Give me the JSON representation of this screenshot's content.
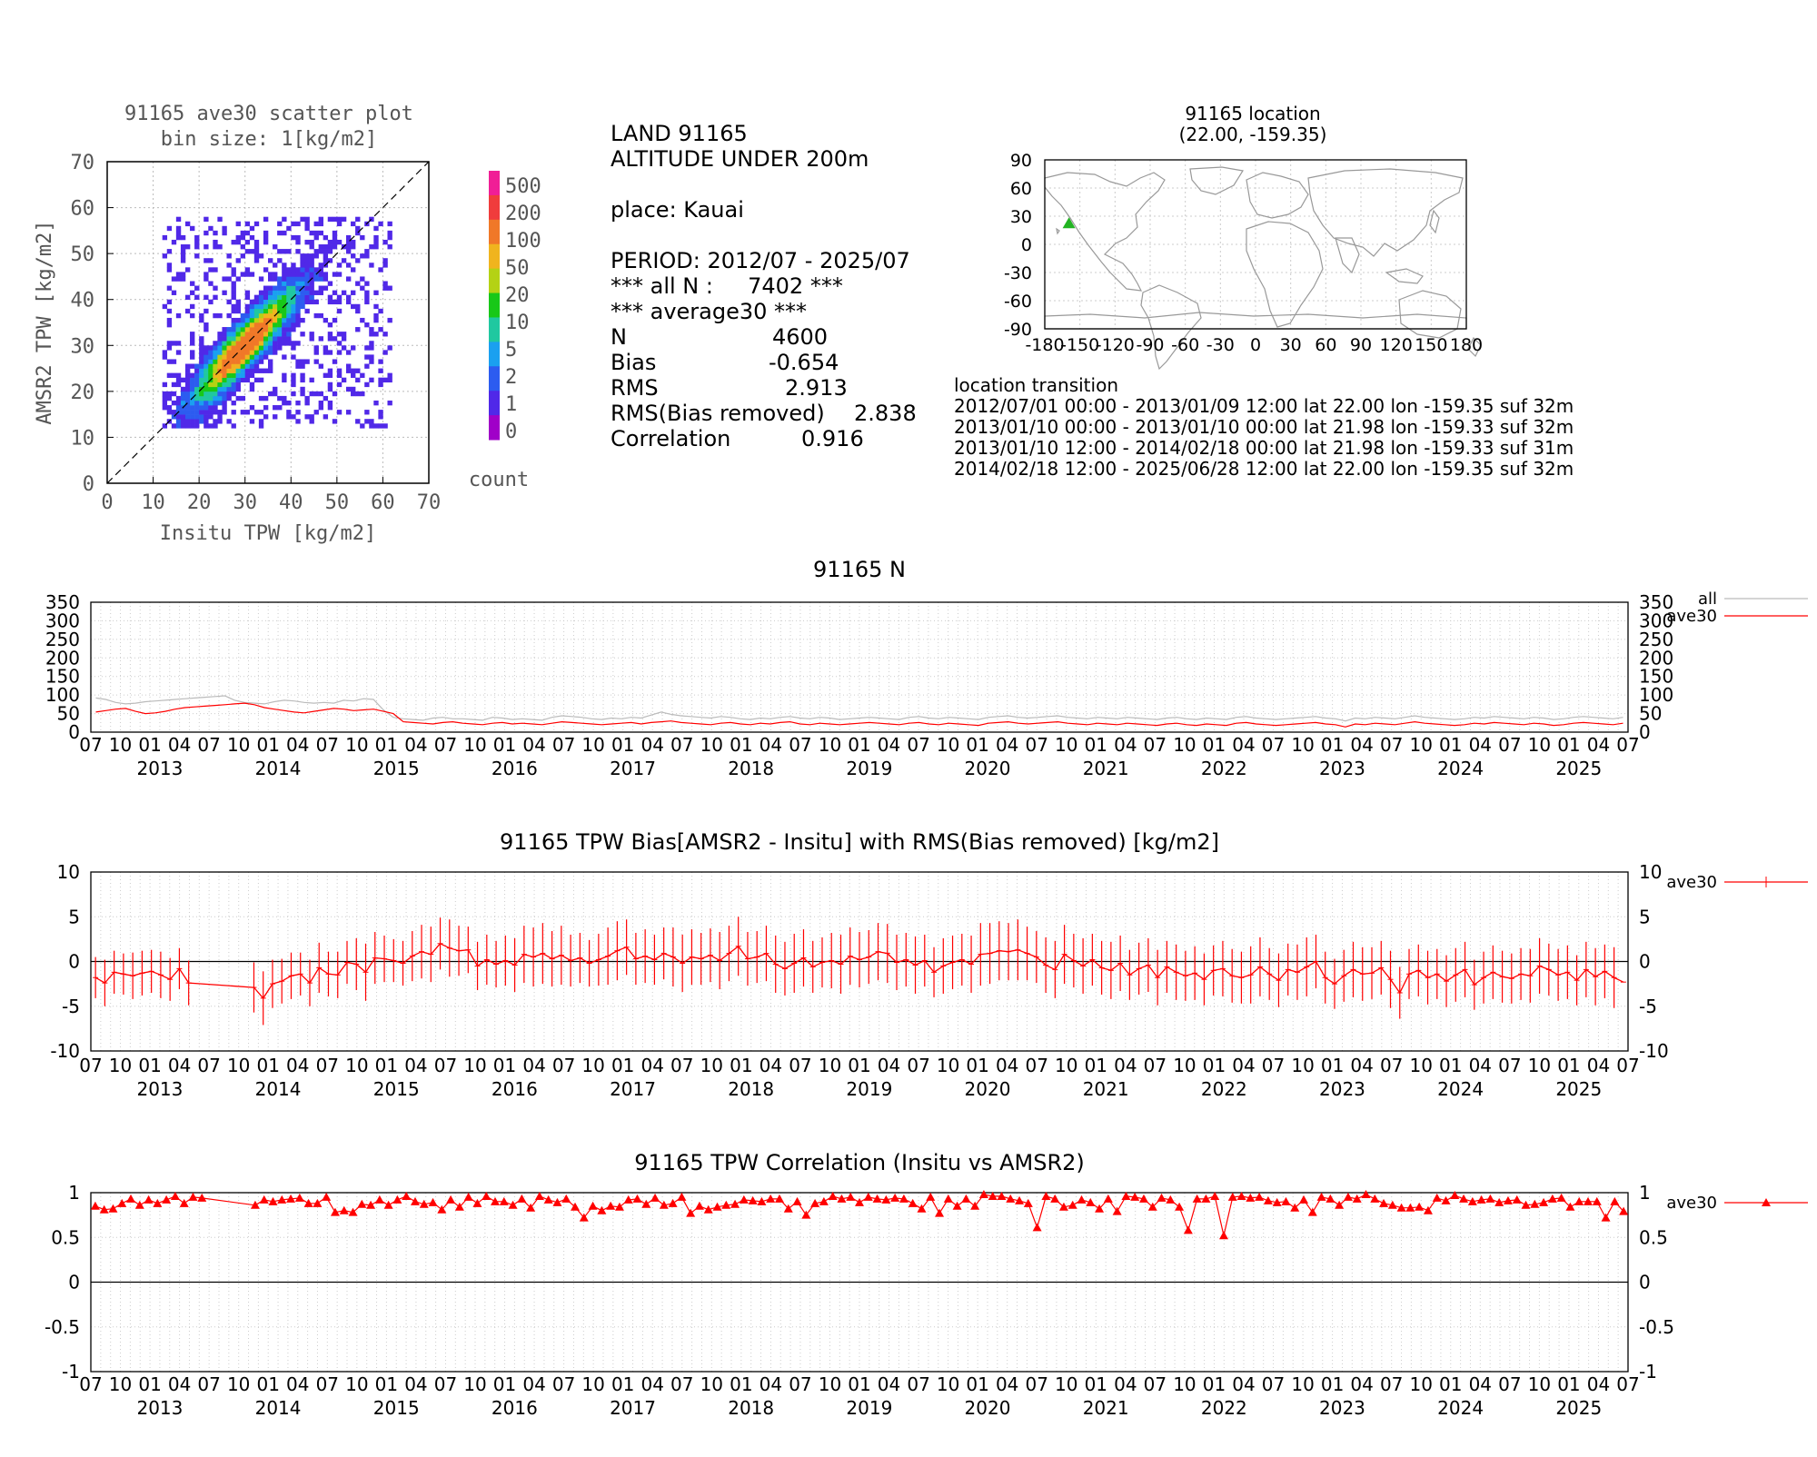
{
  "scatter": {
    "title_line1": "91165 ave30 scatter plot",
    "title_line2": "bin size: 1[kg/m2]",
    "xlabel": "Insitu TPW [kg/m2]",
    "ylabel": "AMSR2 TPW [kg/m2]",
    "xticks": [
      "0",
      "10",
      "20",
      "30",
      "40",
      "50",
      "60",
      "70"
    ],
    "yticks": [
      "0",
      "10",
      "20",
      "30",
      "40",
      "50",
      "60",
      "70"
    ],
    "colorbar_title": "count",
    "colorbar_labels": [
      "0",
      "1",
      "2",
      "5",
      "10",
      "20",
      "50",
      "100",
      "200",
      "500"
    ],
    "colorbar_colors": [
      "#a000c8",
      "#5028e8",
      "#2c5cf0",
      "#1aa0f0",
      "#20c8a0",
      "#18c818",
      "#b4d214",
      "#f0b41e",
      "#f07828",
      "#f03c3c",
      "#f01e96"
    ]
  },
  "stats": {
    "line1": "LAND 91165",
    "line2": "ALTITUDE UNDER 200m",
    "line3": "place: Kauai",
    "line4": "PERIOD: 2012/07 - 2025/07",
    "line5": "*** all N :     7402 ***",
    "line6": "*** average30 ***",
    "n_label": "N",
    "n_value": "4600",
    "bias_label": "Bias",
    "bias_value": "-0.654",
    "rms_label": "RMS",
    "rms_value": "2.913",
    "rmsbr_label": "RMS(Bias removed)",
    "rmsbr_value": "2.838",
    "corr_label": "Correlation",
    "corr_value": "0.916"
  },
  "map": {
    "title_line1": "91165 location",
    "title_line2": "(22.00, -159.35)",
    "xticks": [
      "-180",
      "-150",
      "-120",
      "-90",
      "-60",
      "-30",
      "0",
      "30",
      "60",
      "90",
      "120",
      "150",
      "180"
    ],
    "yticks": [
      "90",
      "60",
      "30",
      "0",
      "-30",
      "-60",
      "-90"
    ],
    "station_lat": 22.0,
    "station_lon": -159.35,
    "marker_color": "#22b422"
  },
  "transition": {
    "title": "location transition",
    "rows": [
      "2012/07/01 00:00 - 2013/01/09 12:00 lat 22.00 lon -159.35 suf 32m",
      "2013/01/10 00:00 - 2013/01/10 00:00 lat 21.98 lon -159.33 suf 32m",
      "2013/01/10 12:00 - 2014/02/18 00:00 lat 21.98 lon -159.33 suf 31m",
      "2014/02/18 12:00 - 2025/06/28 12:00 lat 22.00 lon -159.35 suf 32m"
    ]
  },
  "timeseries": {
    "month_ticks": [
      "07",
      "10",
      "01",
      "04",
      "07",
      "10",
      "01",
      "04",
      "07",
      "10",
      "01",
      "04",
      "07",
      "10",
      "01",
      "04",
      "07",
      "10",
      "01",
      "04",
      "07",
      "10",
      "01",
      "04",
      "07",
      "10",
      "01",
      "04",
      "07",
      "10",
      "01",
      "04",
      "07",
      "10",
      "01",
      "04",
      "07",
      "10",
      "01",
      "04",
      "07",
      "10",
      "01",
      "04",
      "07",
      "10",
      "01",
      "04",
      "07",
      "10",
      "01",
      "04",
      "07"
    ],
    "years": [
      "2013",
      "2014",
      "2015",
      "2016",
      "2017",
      "2018",
      "2019",
      "2020",
      "2021",
      "2022",
      "2023",
      "2024",
      "2025"
    ]
  },
  "chart_data": [
    {
      "type": "line",
      "title": "91165 N",
      "ylim": [
        0,
        350
      ],
      "yticks": [
        "350",
        "300",
        "250",
        "200",
        "150",
        "100",
        "50",
        "0"
      ],
      "x_start": "2012-07",
      "x_end": "2025-07",
      "series": [
        {
          "name": "all",
          "color": "#bbbbbb",
          "values": [
            92,
            88,
            80,
            76,
            78,
            82,
            84,
            86,
            88,
            90,
            92,
            94,
            96,
            98,
            86,
            80,
            78,
            76,
            82,
            86,
            84,
            80,
            78,
            80,
            78,
            86,
            84,
            90,
            88,
            60,
            40,
            36,
            34,
            32,
            38,
            40,
            36,
            36,
            34,
            32,
            40,
            38,
            34,
            36,
            34,
            32,
            40,
            44,
            42,
            40,
            36,
            34,
            38,
            36,
            40,
            38,
            46,
            54,
            48,
            44,
            42,
            40,
            38,
            42,
            40,
            36,
            34,
            38,
            36,
            40,
            42,
            38,
            36,
            40,
            38,
            34,
            36,
            38,
            40,
            38,
            36,
            34,
            40,
            42,
            38,
            36,
            40,
            38,
            36,
            34,
            40,
            42,
            44,
            40,
            38,
            40,
            42,
            44,
            40,
            38,
            36,
            40,
            38,
            36,
            40,
            38,
            36,
            34,
            38,
            40,
            36,
            34,
            38,
            36,
            34,
            40,
            42,
            38,
            36,
            34,
            36,
            38,
            40,
            42,
            38,
            36,
            30,
            38,
            36,
            40,
            38,
            36,
            40,
            44,
            40,
            38,
            36,
            34,
            36,
            40,
            38,
            42,
            40,
            38,
            36,
            40,
            38,
            34,
            36,
            40,
            42,
            40,
            38,
            36,
            40
          ]
        },
        {
          "name": "ave30",
          "color": "#ff0000",
          "values": [
            54,
            58,
            62,
            64,
            56,
            50,
            52,
            56,
            62,
            66,
            68,
            70,
            72,
            74,
            76,
            78,
            74,
            66,
            62,
            58,
            54,
            52,
            56,
            60,
            64,
            62,
            58,
            60,
            62,
            56,
            50,
            28,
            26,
            24,
            22,
            26,
            28,
            24,
            22,
            20,
            24,
            26,
            22,
            24,
            22,
            20,
            24,
            28,
            26,
            24,
            22,
            20,
            22,
            24,
            26,
            22,
            26,
            28,
            30,
            26,
            24,
            22,
            20,
            24,
            26,
            22,
            20,
            24,
            22,
            26,
            28,
            22,
            20,
            24,
            22,
            20,
            22,
            24,
            26,
            24,
            22,
            20,
            24,
            26,
            22,
            20,
            24,
            22,
            20,
            18,
            24,
            26,
            28,
            24,
            22,
            24,
            26,
            28,
            24,
            22,
            20,
            24,
            22,
            20,
            24,
            22,
            20,
            18,
            22,
            24,
            20,
            18,
            22,
            20,
            18,
            24,
            26,
            22,
            20,
            18,
            20,
            22,
            24,
            26,
            22,
            20,
            14,
            22,
            20,
            24,
            22,
            20,
            24,
            28,
            24,
            22,
            20,
            18,
            20,
            24,
            22,
            26,
            24,
            22,
            20,
            24,
            22,
            18,
            20,
            24,
            26,
            24,
            22,
            20,
            24
          ]
        }
      ]
    },
    {
      "type": "line",
      "title": "91165 TPW Bias[AMSR2 - Insitu] with RMS(Bias removed) [kg/m2]",
      "ylim": [
        -10,
        10
      ],
      "yticks": [
        "10",
        "5",
        "0",
        "-5",
        "-10"
      ],
      "x_start": "2012-07",
      "x_end": "2025-07",
      "series": [
        {
          "name": "ave30",
          "color": "#ff0000",
          "values": [
            -1.8,
            -2.4,
            -1.2,
            -1.4,
            -1.6,
            -1.3,
            -1.1,
            -1.5,
            -2.0,
            -0.8,
            -2.4,
            null,
            null,
            null,
            null,
            null,
            null,
            -2.9,
            -4.1,
            -2.5,
            -2.2,
            -1.6,
            -1.4,
            -2.4,
            -0.7,
            -1.4,
            -1.5,
            -0.1,
            -0.3,
            -1.2,
            0.4,
            0.3,
            0.1,
            -0.2,
            0.6,
            1.1,
            0.8,
            2.0,
            1.5,
            1.2,
            1.3,
            -0.5,
            0.2,
            -0.3,
            0.1,
            -0.4,
            0.8,
            0.5,
            0.9,
            0.3,
            0.7,
            0.1,
            0.4,
            -0.2,
            0.2,
            0.6,
            1.2,
            1.6,
            0.3,
            0.6,
            0.2,
            0.9,
            0.5,
            -0.2,
            0.5,
            0.3,
            0.7,
            0.1,
            0.9,
            1.7,
            0.3,
            0.5,
            0.9,
            -0.3,
            -0.8,
            -0.2,
            0.4,
            -0.6,
            -0.1,
            0.1,
            -0.3,
            0.6,
            0.2,
            0.5,
            1.1,
            0.9,
            -0.1,
            0.2,
            -0.4,
            0.1,
            -1.2,
            -0.5,
            -0.1,
            0.2,
            -0.3,
            0.8,
            0.9,
            1.2,
            1.1,
            1.3,
            0.9,
            0.5,
            -0.4,
            -0.9,
            0.8,
            0.1,
            -0.5,
            0.2,
            -0.7,
            -1.0,
            -0.2,
            -1.5,
            -0.8,
            -0.4,
            -1.8,
            -0.6,
            -1.2,
            -1.6,
            -1.3,
            -2.0,
            -1.0,
            -0.8,
            -1.6,
            -1.8,
            -1.5,
            -0.6,
            -1.4,
            -2.1,
            -0.9,
            -1.2,
            -0.6,
            0.0,
            -1.8,
            -2.5,
            -1.6,
            -0.9,
            -1.4,
            -1.3,
            -0.7,
            -2.0,
            -3.5,
            -1.4,
            -1.0,
            -1.8,
            -1.4,
            -2.2,
            -1.5,
            -0.9,
            -2.6,
            -1.8,
            -1.2,
            -1.7,
            -1.9,
            -1.4,
            -1.6,
            -0.5,
            -0.9,
            -1.5,
            -1.2,
            -2.1,
            -0.9,
            -1.7,
            -1.1,
            -1.8,
            -2.3
          ]
        },
        {
          "name": "rms",
          "color": "#ff0000",
          "values": [
            2.3,
            2.6,
            2.4,
            2.3,
            2.6,
            2.5,
            2.4,
            2.6,
            2.4,
            2.3,
            2.5,
            null,
            null,
            null,
            null,
            null,
            null,
            2.8,
            3.0,
            2.7,
            2.5,
            2.6,
            2.4,
            2.6,
            2.8,
            2.5,
            2.6,
            2.4,
            2.9,
            3.2,
            2.9,
            2.6,
            2.4,
            2.5,
            2.8,
            3.0,
            3.1,
            2.9,
            3.2,
            2.8,
            2.6,
            2.7,
            2.8,
            2.6,
            2.8,
            3.0,
            3.2,
            3.3,
            3.4,
            3.1,
            3.3,
            2.9,
            2.8,
            2.6,
            2.9,
            3.2,
            3.3,
            3.1,
            2.9,
            3.0,
            2.8,
            2.9,
            3.3,
            3.2,
            3.1,
            2.9,
            3.0,
            3.2,
            3.1,
            3.3,
            3.0,
            2.9,
            3.1,
            3.2,
            3.0,
            3.3,
            3.2,
            2.9,
            2.8,
            3.1,
            3.3,
            3.2,
            3.1,
            3.0,
            3.2,
            3.3,
            3.1,
            3.0,
            3.2,
            2.9,
            2.8,
            3.1,
            3.0,
            2.9,
            3.2,
            3.5,
            3.4,
            3.3,
            3.2,
            3.4,
            3.0,
            2.9,
            3.1,
            3.2,
            3.3,
            3.0,
            3.1,
            2.9,
            3.0,
            3.2,
            3.1,
            2.8,
            2.9,
            3.0,
            3.1,
            2.9,
            3.1,
            2.8,
            3.0,
            2.9,
            2.8,
            3.1,
            3.0,
            2.9,
            3.2,
            3.3,
            2.9,
            3.0,
            2.9,
            3.1,
            3.3,
            3.0,
            2.9,
            2.8,
            2.9,
            3.1,
            3.0,
            2.9,
            3.0,
            3.2,
            2.9,
            2.8,
            2.9,
            3.0,
            2.8,
            2.9,
            3.0,
            3.1,
            2.8,
            2.9,
            3.0,
            2.9,
            2.8,
            2.9,
            3.0,
            3.1,
            2.9,
            2.9,
            3.0,
            2.8,
            3.1,
            3.2,
            3.0,
            3.4
          ]
        }
      ]
    },
    {
      "type": "line",
      "title": "91165 TPW Correlation (Insitu vs AMSR2)",
      "ylim": [
        -1,
        1
      ],
      "yticks": [
        "1",
        "0.5",
        "0",
        "-0.5",
        "-1"
      ],
      "x_start": "2012-07",
      "x_end": "2025-07",
      "series": [
        {
          "name": "ave30",
          "color": "#ff0000",
          "values": [
            0.85,
            0.81,
            0.82,
            0.88,
            0.93,
            0.86,
            0.92,
            0.88,
            0.92,
            0.96,
            0.88,
            0.95,
            0.94,
            null,
            null,
            null,
            null,
            null,
            0.86,
            0.92,
            0.9,
            0.92,
            0.93,
            0.94,
            0.88,
            0.88,
            0.95,
            0.78,
            0.8,
            0.78,
            0.87,
            0.86,
            0.92,
            0.86,
            0.92,
            0.96,
            0.9,
            0.87,
            0.89,
            0.81,
            0.92,
            0.84,
            0.95,
            0.88,
            0.96,
            0.9,
            0.9,
            0.86,
            0.93,
            0.83,
            0.96,
            0.92,
            0.89,
            0.93,
            0.84,
            0.72,
            0.85,
            0.8,
            0.85,
            0.84,
            0.92,
            0.93,
            0.87,
            0.94,
            0.86,
            0.88,
            0.95,
            0.77,
            0.85,
            0.81,
            0.84,
            0.86,
            0.87,
            0.92,
            0.91,
            0.9,
            0.93,
            0.93,
            0.82,
            0.9,
            0.75,
            0.88,
            0.9,
            0.96,
            0.93,
            0.95,
            0.89,
            0.95,
            0.93,
            0.92,
            0.94,
            0.93,
            0.88,
            0.82,
            0.95,
            0.77,
            0.93,
            0.85,
            0.93,
            0.85,
            0.98,
            0.96,
            0.96,
            0.93,
            0.91,
            0.88,
            0.61,
            0.96,
            0.93,
            0.84,
            0.86,
            0.92,
            0.89,
            0.82,
            0.93,
            0.79,
            0.96,
            0.95,
            0.93,
            0.84,
            0.94,
            0.92,
            0.84,
            0.58,
            0.93,
            0.93,
            0.96,
            0.52,
            0.95,
            0.96,
            0.94,
            0.95,
            0.91,
            0.89,
            0.9,
            0.83,
            0.92,
            0.78,
            0.95,
            0.93,
            0.86,
            0.95,
            0.93,
            0.98,
            0.93,
            0.88,
            0.86,
            0.83,
            0.83,
            0.84,
            0.8,
            0.94,
            0.91,
            0.97,
            0.93,
            0.9,
            0.92,
            0.93,
            0.89,
            0.91,
            0.92,
            0.86,
            0.87,
            0.89,
            0.93,
            0.94,
            0.84,
            0.9,
            0.9,
            0.9,
            0.72,
            0.9,
            0.79
          ]
        }
      ]
    }
  ]
}
